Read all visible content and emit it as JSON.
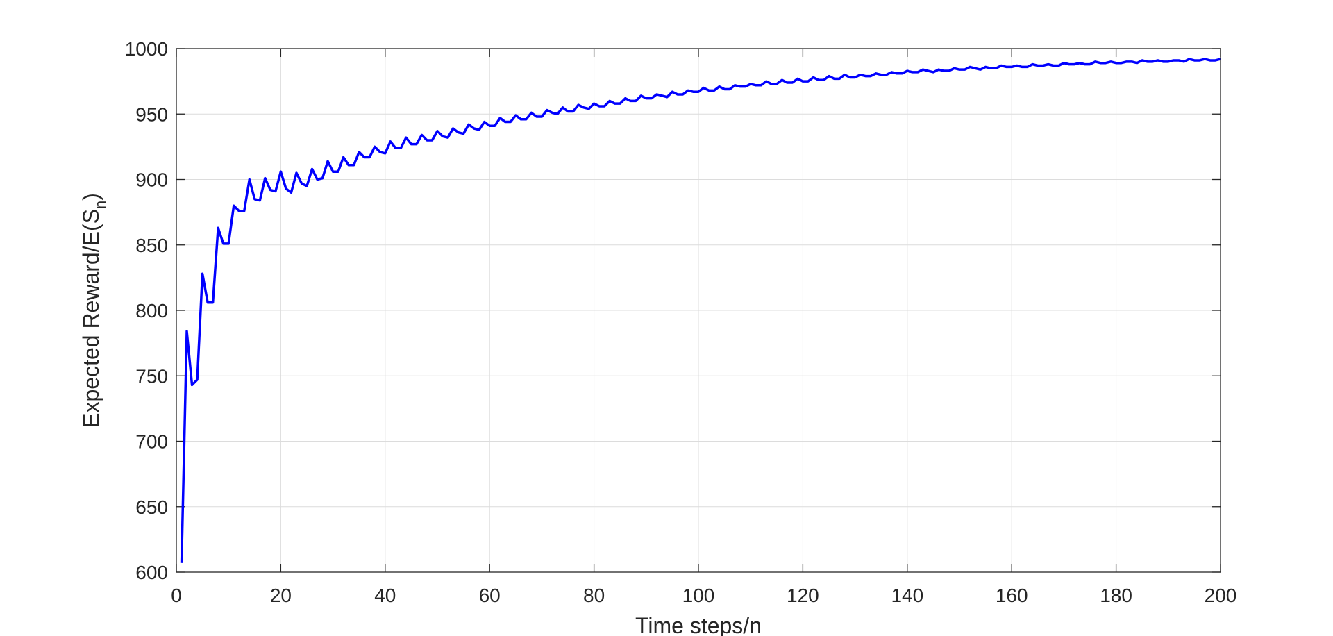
{
  "chart_data": {
    "type": "line",
    "title": "",
    "xlabel": "Time steps/n",
    "ylabel_main": "Expected Reward/E(S",
    "ylabel_sub": "n",
    "ylabel_close": ")",
    "xlim": [
      0,
      200
    ],
    "ylim": [
      600,
      1000
    ],
    "xticks": [
      0,
      20,
      40,
      60,
      80,
      100,
      120,
      140,
      160,
      180,
      200
    ],
    "yticks": [
      600,
      650,
      700,
      750,
      800,
      850,
      900,
      950,
      1000
    ],
    "grid": true,
    "line_color": "#0000ff",
    "series": [
      {
        "x": [
          1,
          2,
          3,
          4,
          5,
          6,
          7,
          8,
          9,
          10,
          11,
          12,
          13,
          14,
          15,
          16,
          17,
          18,
          19,
          20,
          21,
          22,
          23,
          24,
          25,
          26,
          27,
          28,
          29,
          30,
          31,
          32,
          33,
          34,
          35,
          36,
          37,
          38,
          39,
          40,
          41,
          42,
          43,
          44,
          45,
          46,
          47,
          48,
          49,
          50,
          51,
          52,
          53,
          54,
          55,
          56,
          57,
          58,
          59,
          60,
          61,
          62,
          63,
          64,
          65,
          66,
          67,
          68,
          69,
          70,
          71,
          72,
          73,
          74,
          75,
          76,
          77,
          78,
          79,
          80,
          81,
          82,
          83,
          84,
          85,
          86,
          87,
          88,
          89,
          90,
          91,
          92,
          93,
          94,
          95,
          96,
          97,
          98,
          99,
          100,
          101,
          102,
          103,
          104,
          105,
          106,
          107,
          108,
          109,
          110,
          111,
          112,
          113,
          114,
          115,
          116,
          117,
          118,
          119,
          120,
          121,
          122,
          123,
          124,
          125,
          126,
          127,
          128,
          129,
          130,
          131,
          132,
          133,
          134,
          135,
          136,
          137,
          138,
          139,
          140,
          141,
          142,
          143,
          144,
          145,
          146,
          147,
          148,
          149,
          150,
          151,
          152,
          153,
          154,
          155,
          156,
          157,
          158,
          159,
          160,
          161,
          162,
          163,
          164,
          165,
          166,
          167,
          168,
          169,
          170,
          171,
          172,
          173,
          174,
          175,
          176,
          177,
          178,
          179,
          180,
          181,
          182,
          183,
          184,
          185,
          186,
          187,
          188,
          189,
          190,
          191,
          192,
          193,
          194,
          195,
          196,
          197,
          198,
          199,
          200
        ],
        "y": [
          607,
          784,
          743,
          747,
          828,
          806,
          806,
          863,
          851,
          851,
          880,
          876,
          876,
          900,
          885,
          884,
          901,
          892,
          891,
          906,
          893,
          890,
          905,
          897,
          895,
          908,
          900,
          901,
          914,
          906,
          906,
          917,
          911,
          911,
          921,
          917,
          917,
          925,
          921,
          920,
          929,
          924,
          924,
          932,
          927,
          927,
          934,
          930,
          930,
          937,
          933,
          932,
          939,
          936,
          935,
          942,
          939,
          938,
          944,
          941,
          941,
          947,
          944,
          944,
          949,
          946,
          946,
          951,
          948,
          948,
          953,
          951,
          950,
          955,
          952,
          952,
          957,
          955,
          954,
          958,
          956,
          956,
          960,
          958,
          958,
          962,
          960,
          960,
          964,
          962,
          962,
          965,
          964,
          963,
          967,
          965,
          965,
          968,
          967,
          967,
          970,
          968,
          968,
          971,
          969,
          969,
          972,
          971,
          971,
          973,
          972,
          972,
          975,
          973,
          973,
          976,
          974,
          974,
          977,
          975,
          975,
          978,
          976,
          976,
          979,
          977,
          977,
          980,
          978,
          978,
          980,
          979,
          979,
          981,
          980,
          980,
          982,
          981,
          981,
          983,
          982,
          982,
          984,
          983,
          982,
          984,
          983,
          983,
          985,
          984,
          984,
          986,
          985,
          984,
          986,
          985,
          985,
          987,
          986,
          986,
          987,
          986,
          986,
          988,
          987,
          987,
          988,
          987,
          987,
          989,
          988,
          988,
          989,
          988,
          988,
          990,
          989,
          989,
          990,
          989,
          989,
          990,
          990,
          989,
          991,
          990,
          990,
          991,
          990,
          990,
          991,
          991,
          990,
          992,
          991,
          991,
          992,
          991,
          991,
          992
        ]
      }
    ]
  }
}
